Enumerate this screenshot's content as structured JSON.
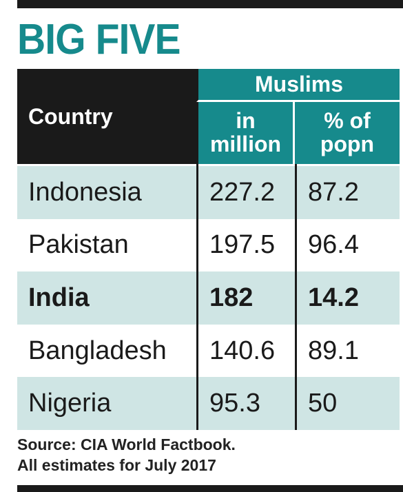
{
  "title": "BIG FIVE",
  "table": {
    "header": {
      "country": "Country",
      "group": "Muslims",
      "columns": [
        "in million",
        "% of popn"
      ]
    },
    "rows": [
      [
        "Indonesia",
        227.2,
        87.2
      ],
      [
        "Pakistan",
        197.5,
        96.4
      ],
      [
        "India",
        182,
        14.2
      ],
      [
        "Bangladesh",
        140.6,
        89.1
      ],
      [
        "Nigeria",
        95.3,
        50
      ]
    ]
  },
  "source": [
    "Source: CIA World Factbook.",
    "All estimates for July 2017"
  ]
}
